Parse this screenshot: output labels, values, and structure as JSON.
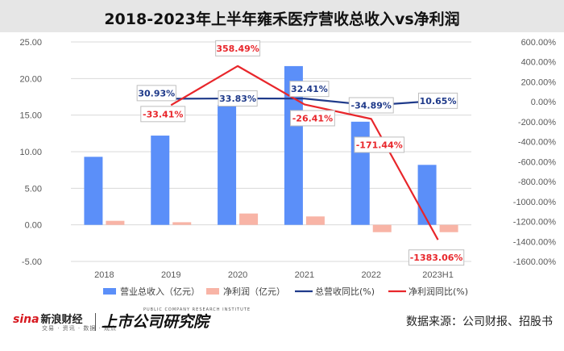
{
  "footer": {
    "brand_sina": "sina",
    "brand_name": "新浪财经",
    "brand_sub": "交易 · 资讯 · 数据 · 观点",
    "brand2": "上市公司研究院",
    "brand2_sub": "PUBLIC COMPANY RESEARCH INSTITUTE",
    "source": "数据来源：公司财报、招股书"
  },
  "colors": {
    "revenue_bar": "#5b8ff9",
    "profit_bar": "#f8b4a6",
    "revenue_growth_line": "#1f3a8a",
    "profit_growth_line": "#e8262b"
  },
  "chart_data": {
    "type": "bar",
    "title": "2018-2023年上半年雍禾医疗营收总收入vs净利润",
    "categories": [
      "2018",
      "2019",
      "2020",
      "2021",
      "2022",
      "2023H1"
    ],
    "left_axis": {
      "min": -5,
      "max": 25,
      "step": 5,
      "ticks": [
        "-5.00",
        "0.00",
        "5.00",
        "10.00",
        "15.00",
        "20.00",
        "25.00"
      ]
    },
    "right_axis": {
      "min": -1600,
      "max": 600,
      "step": 200,
      "ticks": [
        "-1600.00%",
        "-1400.00%",
        "-1200.00%",
        "-1000.00%",
        "-800.00%",
        "-600.00%",
        "-400.00%",
        "-200.00%",
        "0.00%",
        "200.00%",
        "400.00%",
        "600.00%"
      ]
    },
    "series": [
      {
        "name": "营业总收入（亿元）",
        "kind": "bar",
        "axis": "left",
        "values": [
          9.3,
          12.2,
          16.4,
          21.7,
          14.1,
          8.2
        ]
      },
      {
        "name": "净利润（亿元）",
        "kind": "bar",
        "axis": "left",
        "values": [
          0.55,
          0.36,
          1.55,
          1.15,
          -1.0,
          -1.0
        ]
      },
      {
        "name": "总营收同比(%)",
        "kind": "line",
        "axis": "right",
        "values": [
          null,
          30.93,
          33.83,
          32.41,
          -34.89,
          10.65
        ],
        "labels": [
          "",
          "30.93%",
          "33.83%",
          "32.41%",
          "-34.89%",
          "10.65%"
        ]
      },
      {
        "name": "净利润同比(%)",
        "kind": "line",
        "axis": "right",
        "values": [
          null,
          -33.41,
          358.49,
          -26.41,
          -171.44,
          -1383.06
        ],
        "labels": [
          "",
          "-33.41%",
          "358.49%",
          "-26.41%",
          "-171.44%",
          "-1383.06%"
        ]
      }
    ],
    "legend_position": "bottom",
    "grid": true
  }
}
